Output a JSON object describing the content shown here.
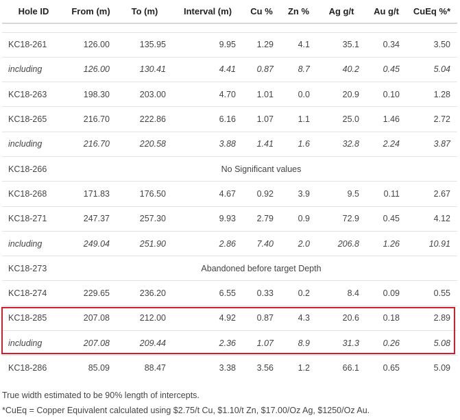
{
  "columns": [
    "Hole ID",
    "From (m)",
    "To (m)",
    "Interval (m)",
    "Cu %",
    "Zn %",
    "Ag g/t",
    "Au g/t",
    "CuEq %*"
  ],
  "rows": [
    {
      "hole": "KC18-261",
      "from": "126.00",
      "to": "135.95",
      "interval": "9.95",
      "cu": "1.29",
      "zn": "4.1",
      "ag": "35.1",
      "au": "0.34",
      "cueq": "3.50"
    },
    {
      "hole": "including",
      "from": "126.00",
      "to": "130.41",
      "interval": "4.41",
      "cu": "0.87",
      "zn": "8.7",
      "ag": "40.2",
      "au": "0.45",
      "cueq": "5.04"
    },
    {
      "hole": "KC18-263",
      "from": "198.30",
      "to": "203.00",
      "interval": "4.70",
      "cu": "1.01",
      "zn": "0.0",
      "ag": "20.9",
      "au": "0.10",
      "cueq": "1.28"
    },
    {
      "hole": "KC18-265",
      "from": "216.70",
      "to": "222.86",
      "interval": "6.16",
      "cu": "1.07",
      "zn": "1.1",
      "ag": "25.0",
      "au": "1.46",
      "cueq": "2.72"
    },
    {
      "hole": "including",
      "from": "216.70",
      "to": "220.58",
      "interval": "3.88",
      "cu": "1.41",
      "zn": "1.6",
      "ag": "32.8",
      "au": "2.24",
      "cueq": "3.87"
    },
    {
      "hole": "KC18-266",
      "note": "No Significant values"
    },
    {
      "hole": "KC18-268",
      "from": "171.83",
      "to": "176.50",
      "interval": "4.67",
      "cu": "0.92",
      "zn": "3.9",
      "ag": "9.5",
      "au": "0.11",
      "cueq": "2.67"
    },
    {
      "hole": "KC18-271",
      "from": "247.37",
      "to": "257.30",
      "interval": "9.93",
      "cu": "2.79",
      "zn": "0.9",
      "ag": "72.9",
      "au": "0.45",
      "cueq": "4.12"
    },
    {
      "hole": "including",
      "from": "249.04",
      "to": "251.90",
      "interval": "2.86",
      "cu": "7.40",
      "zn": "2.0",
      "ag": "206.8",
      "au": "1.26",
      "cueq": "10.91"
    },
    {
      "hole": "KC18-273",
      "note": "Abandoned before target Depth"
    },
    {
      "hole": "KC18-274",
      "from": "229.65",
      "to": "236.20",
      "interval": "6.55",
      "cu": "0.33",
      "zn": "0.2",
      "ag": "8.4",
      "au": "0.09",
      "cueq": "0.55"
    },
    {
      "hole": "KC18-285",
      "from": "207.08",
      "to": "212.00",
      "interval": "4.92",
      "cu": "0.87",
      "zn": "4.3",
      "ag": "20.6",
      "au": "0.18",
      "cueq": "2.89"
    },
    {
      "hole": "including",
      "from": "207.08",
      "to": "209.44",
      "interval": "2.36",
      "cu": "1.07",
      "zn": "8.9",
      "ag": "31.3",
      "au": "0.26",
      "cueq": "5.08"
    },
    {
      "hole": "KC18-286",
      "from": "85.09",
      "to": "88.47",
      "interval": "3.38",
      "cu": "3.56",
      "zn": "1.2",
      "ag": "66.1",
      "au": "0.65",
      "cueq": "5.09"
    }
  ],
  "footnotes": [
    "True width estimated to be 90% length of intercepts.",
    "*CuEq = Copper Equivalent calculated using $2.75/t Cu, $1.10/t Zn, $17.00/Oz Ag, $1250/Oz Au."
  ],
  "highlight_color": "#d21e2a"
}
